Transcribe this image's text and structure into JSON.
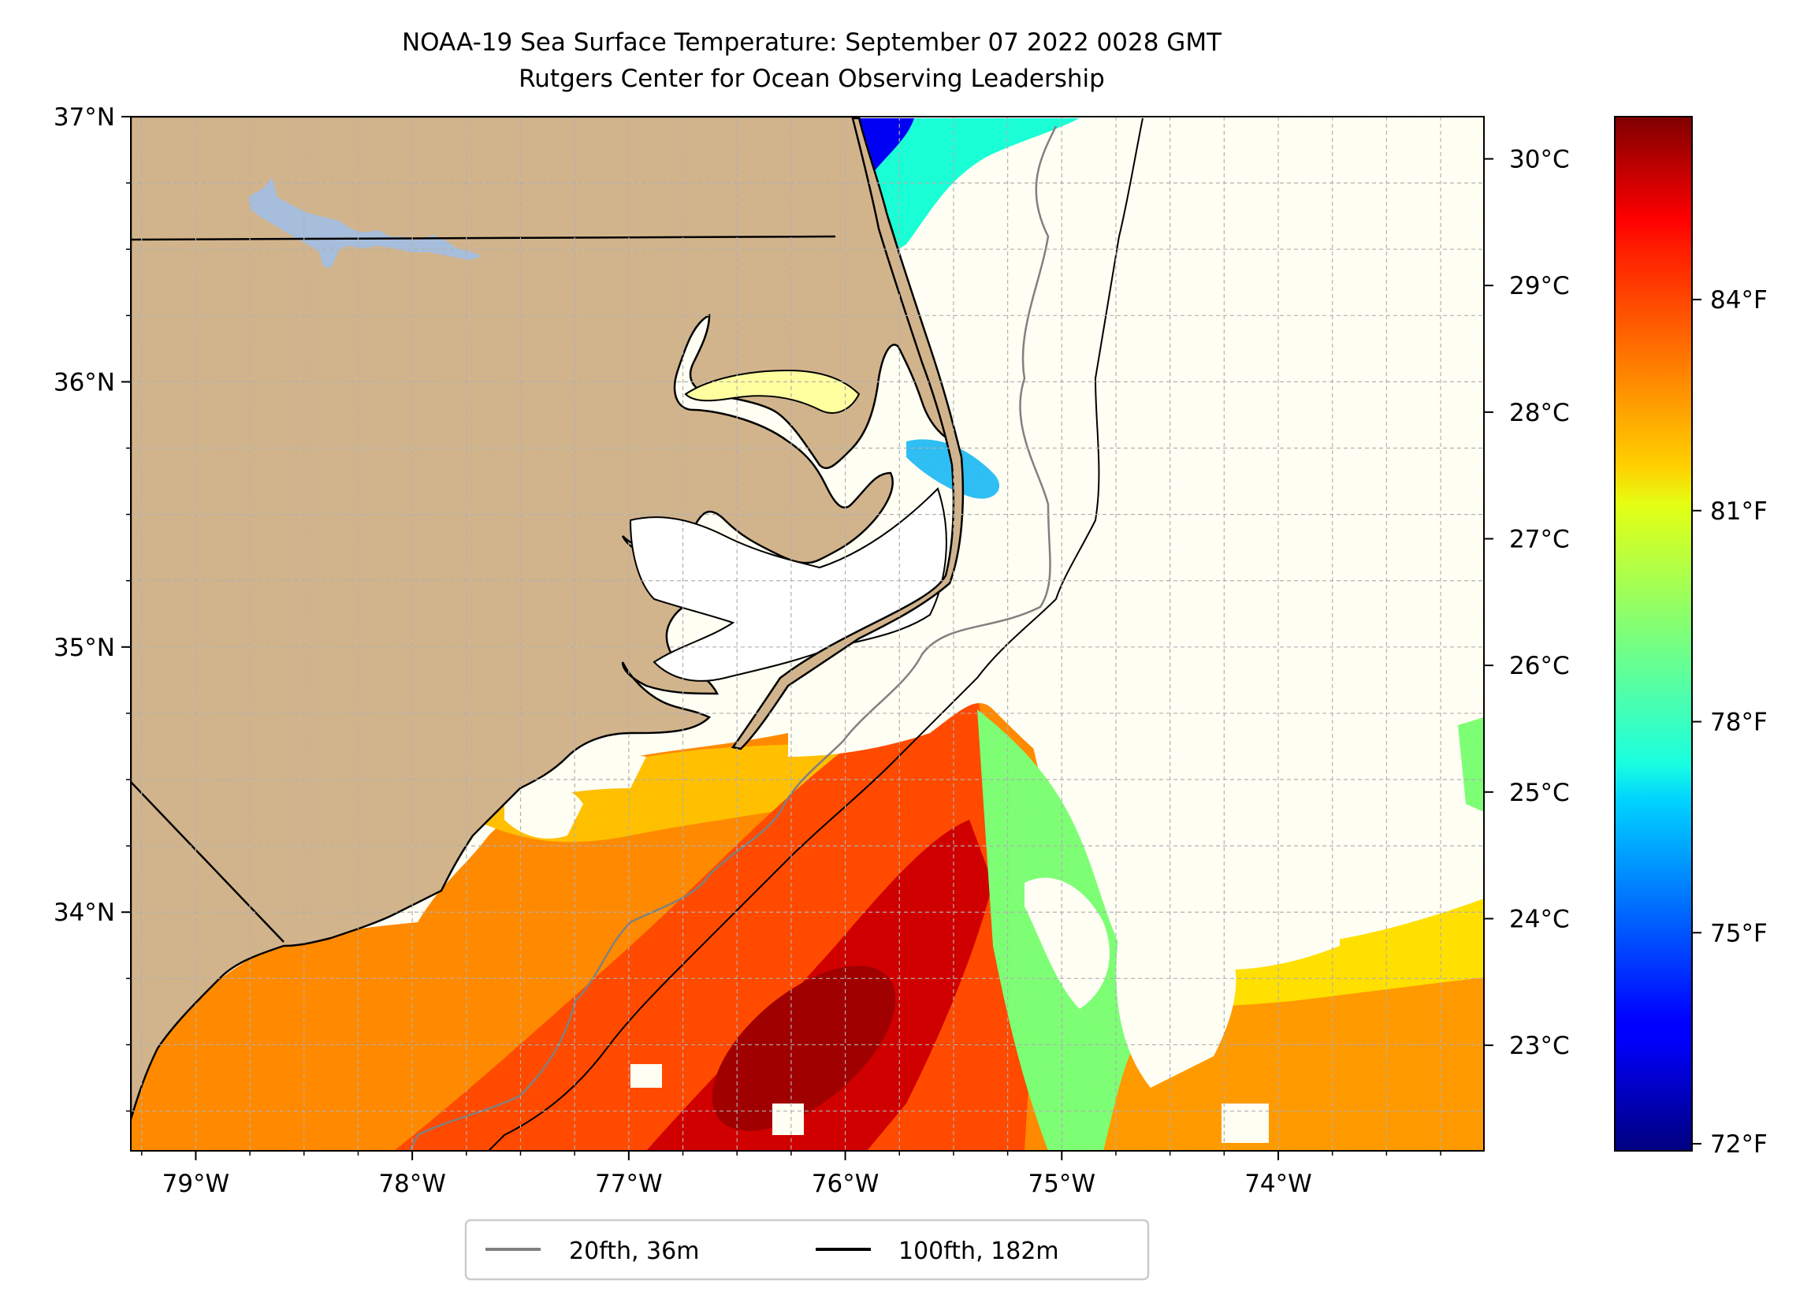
{
  "title": "NOAA-19 Sea Surface Temperature: September 07 2022 0028 GMT",
  "subtitle": "Rutgers Center for Ocean Observing Leadership",
  "map": {
    "lon_range": [
      -79.3,
      -73.05
    ],
    "lat_range": [
      33.1,
      37.0
    ],
    "lon_ticks": [
      "79°W",
      "78°W",
      "77°W",
      "76°W",
      "75°W",
      "74°W"
    ],
    "lon_tick_values": [
      -79,
      -78,
      -77,
      -76,
      -75,
      -74
    ],
    "lat_ticks": [
      "37°N",
      "36°N",
      "35°N",
      "34°N"
    ],
    "lat_tick_values": [
      37,
      36,
      35,
      34
    ],
    "gridlines": true,
    "land_color": "#D2B48C",
    "lake_color": "#A6BDDB",
    "missing_color": "#FFFFFF"
  },
  "colorbar": {
    "celsius_ticks": [
      "30°C",
      "29°C",
      "28°C",
      "27°C",
      "26°C",
      "25°C",
      "24°C",
      "23°C"
    ],
    "celsius_values": [
      30,
      29,
      28,
      27,
      26,
      25,
      24,
      23
    ],
    "fahrenheit_ticks": [
      "84°F",
      "81°F",
      "78°F",
      "75°F",
      "72°F"
    ],
    "fahrenheit_values": [
      84,
      81,
      78,
      75,
      72
    ],
    "range_f": [
      71.9,
      86.6
    ],
    "colormap": "jet"
  },
  "legend": {
    "items": [
      {
        "label": "20fth, 36m",
        "color": "#808080"
      },
      {
        "label": "100fth, 182m",
        "color": "#000000"
      }
    ],
    "placement": "bottom-center"
  }
}
